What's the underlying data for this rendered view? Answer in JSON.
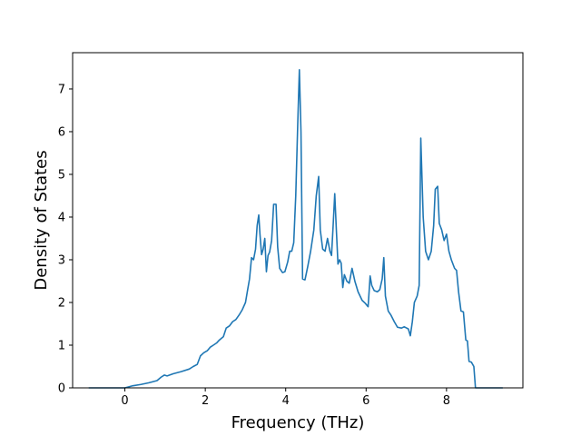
{
  "chart_data": {
    "type": "line",
    "title": "",
    "xlabel": "Frequency (THz)",
    "ylabel": "Density of States",
    "xlim": [
      -1.3,
      9.9
    ],
    "ylim": [
      0,
      7.85
    ],
    "xticks": [
      0,
      2,
      4,
      6,
      8
    ],
    "yticks": [
      0,
      1,
      2,
      3,
      4,
      5,
      6,
      7
    ],
    "grid": false,
    "legend": "none",
    "series": [
      {
        "color": "#1f77b4",
        "points": [
          [
            -0.9,
            0.0
          ],
          [
            0.0,
            0.0
          ],
          [
            0.2,
            0.05
          ],
          [
            0.4,
            0.08
          ],
          [
            0.6,
            0.12
          ],
          [
            0.8,
            0.17
          ],
          [
            0.9,
            0.25
          ],
          [
            0.98,
            0.3
          ],
          [
            1.05,
            0.28
          ],
          [
            1.2,
            0.33
          ],
          [
            1.4,
            0.38
          ],
          [
            1.6,
            0.44
          ],
          [
            1.7,
            0.5
          ],
          [
            1.8,
            0.55
          ],
          [
            1.88,
            0.75
          ],
          [
            1.96,
            0.82
          ],
          [
            2.05,
            0.87
          ],
          [
            2.12,
            0.95
          ],
          [
            2.2,
            1.0
          ],
          [
            2.28,
            1.05
          ],
          [
            2.35,
            1.12
          ],
          [
            2.45,
            1.2
          ],
          [
            2.52,
            1.4
          ],
          [
            2.6,
            1.45
          ],
          [
            2.68,
            1.55
          ],
          [
            2.76,
            1.6
          ],
          [
            2.85,
            1.72
          ],
          [
            2.92,
            1.83
          ],
          [
            3.0,
            2.0
          ],
          [
            3.05,
            2.28
          ],
          [
            3.1,
            2.55
          ],
          [
            3.15,
            3.05
          ],
          [
            3.2,
            3.0
          ],
          [
            3.25,
            3.25
          ],
          [
            3.29,
            3.8
          ],
          [
            3.33,
            4.05
          ],
          [
            3.36,
            3.6
          ],
          [
            3.4,
            3.12
          ],
          [
            3.44,
            3.25
          ],
          [
            3.48,
            3.5
          ],
          [
            3.52,
            2.72
          ],
          [
            3.56,
            3.1
          ],
          [
            3.6,
            3.18
          ],
          [
            3.65,
            3.45
          ],
          [
            3.7,
            4.3
          ],
          [
            3.76,
            4.3
          ],
          [
            3.8,
            3.3
          ],
          [
            3.85,
            2.8
          ],
          [
            3.92,
            2.7
          ],
          [
            3.98,
            2.72
          ],
          [
            4.05,
            2.95
          ],
          [
            4.1,
            3.2
          ],
          [
            4.15,
            3.2
          ],
          [
            4.2,
            3.4
          ],
          [
            4.25,
            4.5
          ],
          [
            4.3,
            6.2
          ],
          [
            4.34,
            7.45
          ],
          [
            4.38,
            6.0
          ],
          [
            4.42,
            2.55
          ],
          [
            4.48,
            2.53
          ],
          [
            4.55,
            2.85
          ],
          [
            4.62,
            3.2
          ],
          [
            4.7,
            3.7
          ],
          [
            4.76,
            4.5
          ],
          [
            4.82,
            4.95
          ],
          [
            4.86,
            3.7
          ],
          [
            4.92,
            3.25
          ],
          [
            4.98,
            3.2
          ],
          [
            5.04,
            3.5
          ],
          [
            5.1,
            3.2
          ],
          [
            5.14,
            3.1
          ],
          [
            5.18,
            3.8
          ],
          [
            5.22,
            4.55
          ],
          [
            5.26,
            3.7
          ],
          [
            5.3,
            2.9
          ],
          [
            5.34,
            3.0
          ],
          [
            5.38,
            2.92
          ],
          [
            5.42,
            2.35
          ],
          [
            5.46,
            2.65
          ],
          [
            5.52,
            2.5
          ],
          [
            5.58,
            2.45
          ],
          [
            5.65,
            2.8
          ],
          [
            5.72,
            2.5
          ],
          [
            5.8,
            2.25
          ],
          [
            5.9,
            2.05
          ],
          [
            5.98,
            1.98
          ],
          [
            6.05,
            1.9
          ],
          [
            6.1,
            2.62
          ],
          [
            6.14,
            2.4
          ],
          [
            6.2,
            2.28
          ],
          [
            6.28,
            2.25
          ],
          [
            6.34,
            2.3
          ],
          [
            6.4,
            2.55
          ],
          [
            6.44,
            3.05
          ],
          [
            6.48,
            2.15
          ],
          [
            6.55,
            1.8
          ],
          [
            6.62,
            1.7
          ],
          [
            6.7,
            1.55
          ],
          [
            6.78,
            1.42
          ],
          [
            6.88,
            1.4
          ],
          [
            6.95,
            1.43
          ],
          [
            7.05,
            1.38
          ],
          [
            7.1,
            1.22
          ],
          [
            7.15,
            1.55
          ],
          [
            7.2,
            2.0
          ],
          [
            7.27,
            2.15
          ],
          [
            7.32,
            2.4
          ],
          [
            7.36,
            5.85
          ],
          [
            7.42,
            4.0
          ],
          [
            7.48,
            3.2
          ],
          [
            7.55,
            3.0
          ],
          [
            7.62,
            3.2
          ],
          [
            7.68,
            3.8
          ],
          [
            7.72,
            4.65
          ],
          [
            7.78,
            4.72
          ],
          [
            7.82,
            3.85
          ],
          [
            7.88,
            3.7
          ],
          [
            7.94,
            3.45
          ],
          [
            8.0,
            3.6
          ],
          [
            8.06,
            3.2
          ],
          [
            8.12,
            3.0
          ],
          [
            8.2,
            2.8
          ],
          [
            8.25,
            2.75
          ],
          [
            8.3,
            2.25
          ],
          [
            8.36,
            1.8
          ],
          [
            8.42,
            1.78
          ],
          [
            8.48,
            1.12
          ],
          [
            8.52,
            1.1
          ],
          [
            8.56,
            0.62
          ],
          [
            8.62,
            0.6
          ],
          [
            8.68,
            0.5
          ],
          [
            8.72,
            0.0
          ],
          [
            9.4,
            0.0
          ]
        ]
      }
    ]
  }
}
